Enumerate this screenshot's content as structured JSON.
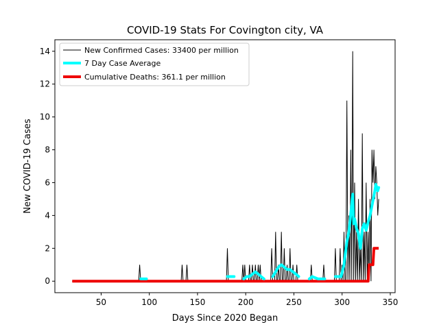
{
  "chart_data": {
    "type": "line",
    "title": "COVID-19 Stats For Covington city, VA",
    "xlabel": "Days Since 2020 Began",
    "ylabel": "New COVID-19 Cases",
    "xlim": [
      2,
      355
    ],
    "ylim": [
      -0.7,
      14.7
    ],
    "xticks": [
      50,
      100,
      150,
      200,
      250,
      300,
      350
    ],
    "yticks": [
      0,
      2,
      4,
      6,
      8,
      10,
      12,
      14
    ],
    "grid": false,
    "legend_position": "top-left",
    "series": [
      {
        "name": "New Confirmed Cases: 33400 per million",
        "color": "#000000",
        "x_start": 20,
        "x_end": 338,
        "events": [
          [
            90,
            1
          ],
          [
            134,
            1
          ],
          [
            139,
            1
          ],
          [
            181,
            2
          ],
          [
            197,
            1
          ],
          [
            199,
            1
          ],
          [
            204,
            1
          ],
          [
            207,
            1
          ],
          [
            210,
            1
          ],
          [
            213,
            1
          ],
          [
            215,
            1
          ],
          [
            227,
            2
          ],
          [
            231,
            3
          ],
          [
            234,
            1
          ],
          [
            237,
            3
          ],
          [
            240,
            2
          ],
          [
            243,
            1
          ],
          [
            246,
            2
          ],
          [
            249,
            1
          ],
          [
            253,
            1
          ],
          [
            268,
            1
          ],
          [
            281,
            1
          ],
          [
            293,
            2
          ],
          [
            298,
            2
          ],
          [
            300,
            1
          ],
          [
            302,
            3
          ],
          [
            305,
            11
          ],
          [
            307,
            4
          ],
          [
            309,
            8
          ],
          [
            311,
            14
          ],
          [
            313,
            6
          ],
          [
            315,
            3
          ],
          [
            317,
            5
          ],
          [
            319,
            2
          ],
          [
            321,
            9
          ],
          [
            323,
            3
          ],
          [
            325,
            6
          ],
          [
            327,
            3
          ],
          [
            329,
            5
          ],
          [
            331,
            8
          ],
          [
            332,
            6
          ],
          [
            333,
            8
          ],
          [
            334,
            5
          ],
          [
            335,
            7
          ],
          [
            336,
            6
          ],
          [
            337,
            4
          ],
          [
            338,
            5
          ]
        ]
      },
      {
        "name": "7 Day Case Average",
        "color": "#00ffff",
        "values": [
          [
            91,
            0.14
          ],
          [
            97,
            0.14
          ],
          [
            135,
            0.14
          ],
          [
            145,
            0.14
          ],
          [
            181,
            0.28
          ],
          [
            188,
            0.28
          ],
          [
            198,
            0.14
          ],
          [
            201,
            0.28
          ],
          [
            204,
            0.28
          ],
          [
            207,
            0.43
          ],
          [
            210,
            0.57
          ],
          [
            213,
            0.43
          ],
          [
            216,
            0.28
          ],
          [
            219,
            0.14
          ],
          [
            228,
            0.28
          ],
          [
            231,
            0.57
          ],
          [
            234,
            0.86
          ],
          [
            237,
            1.0
          ],
          [
            240,
            0.86
          ],
          [
            243,
            0.71
          ],
          [
            246,
            0.71
          ],
          [
            249,
            0.57
          ],
          [
            252,
            0.43
          ],
          [
            255,
            0.28
          ],
          [
            266,
            0.14
          ],
          [
            269,
            0.28
          ],
          [
            275,
            0.14
          ],
          [
            282,
            0.14
          ],
          [
            293,
            0.28
          ],
          [
            299,
            0.28
          ],
          [
            302,
            1.0
          ],
          [
            305,
            2.4
          ],
          [
            307,
            3.0
          ],
          [
            309,
            4.1
          ],
          [
            311,
            5.3
          ],
          [
            312,
            3.5
          ],
          [
            313,
            3.8
          ],
          [
            315,
            3.2
          ],
          [
            317,
            2.9
          ],
          [
            319,
            2.0
          ],
          [
            321,
            3.2
          ],
          [
            323,
            3.5
          ],
          [
            325,
            3.1
          ],
          [
            327,
            3.6
          ],
          [
            329,
            4.0
          ],
          [
            331,
            4.6
          ],
          [
            333,
            5.2
          ],
          [
            334,
            5.5
          ],
          [
            335,
            5.9
          ],
          [
            336,
            5.7
          ],
          [
            337,
            5.5
          ],
          [
            338,
            5.7
          ]
        ]
      },
      {
        "name": "Cumulative Deaths: 361.1 per million",
        "color": "#ee0000",
        "values": [
          [
            20,
            0
          ],
          [
            327,
            0
          ],
          [
            328,
            1
          ],
          [
            332,
            1
          ],
          [
            333,
            2
          ],
          [
            338,
            2
          ]
        ]
      }
    ]
  }
}
